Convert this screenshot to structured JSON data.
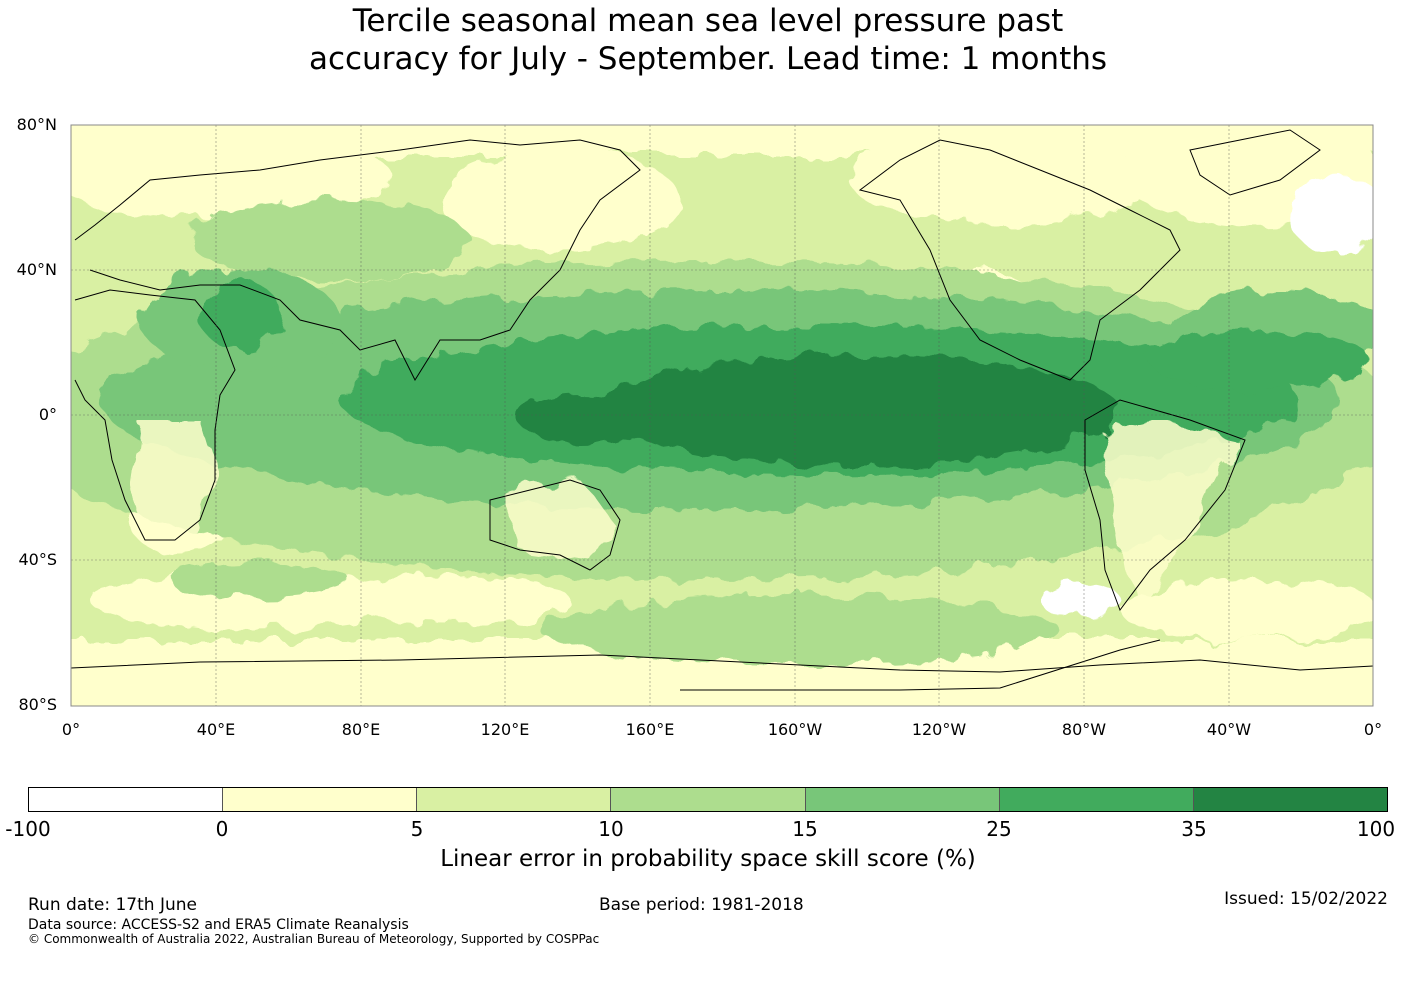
{
  "title_line1": "Tercile seasonal mean sea level pressure past",
  "title_line2": "accuracy for July - September. Lead time: 1 months",
  "map": {
    "lat_labels": [
      "80°N",
      "40°N",
      "0°",
      "40°S",
      "80°S"
    ],
    "lon_labels": [
      "0°",
      "40°E",
      "80°E",
      "120°E",
      "160°E",
      "160°W",
      "120°W",
      "80°W",
      "40°W",
      "0°"
    ]
  },
  "colorbar": {
    "ticks": [
      "-100",
      "0",
      "5",
      "10",
      "15",
      "25",
      "35",
      "100"
    ],
    "colors": [
      "#ffffff",
      "#ffffcc",
      "#d9f0a3",
      "#addd8e",
      "#78c679",
      "#41ab5d",
      "#238443"
    ],
    "label": "Linear error in probability space skill score (%)"
  },
  "footer": {
    "run_date": "Run date: 17th June",
    "base_period": "Base period: 1981-2018",
    "issued": "Issued: 15/02/2022",
    "data_source": "Data source: ACCESS-S2 and ERA5 Climate Reanalysis",
    "copyright": "© Commonwealth of Australia 2022, Australian Bureau of Meteorology, Supported by COSPPac"
  }
}
